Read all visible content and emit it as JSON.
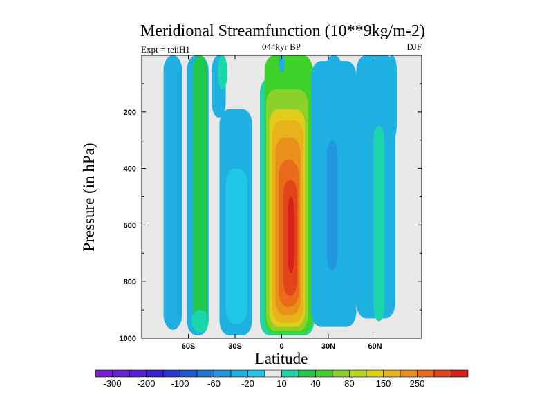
{
  "chart_data": {
    "type": "heatmap",
    "title": "Meridional Streamfunction (10**9kg/m-2)",
    "subtitle_left": "Expt = teiiH1",
    "subtitle_center": "044kyr BP",
    "subtitle_right": "DJF",
    "xlabel": "Latitude",
    "ylabel": "Pressure (in hPa)",
    "xlim": [
      -90,
      90
    ],
    "ylim": [
      1000,
      0
    ],
    "x_ticks": [
      {
        "value": -60,
        "label": "60S"
      },
      {
        "value": -30,
        "label": "30S"
      },
      {
        "value": 0,
        "label": "0"
      },
      {
        "value": 30,
        "label": "30N"
      },
      {
        "value": 60,
        "label": "60N"
      }
    ],
    "y_ticks": [
      {
        "value": 200,
        "label": "200"
      },
      {
        "value": 400,
        "label": "400"
      },
      {
        "value": 600,
        "label": "600"
      },
      {
        "value": 800,
        "label": "800"
      },
      {
        "value": 1000,
        "label": "1000"
      }
    ],
    "colorbar": {
      "colors": [
        "#7a1fd6",
        "#6a1fd8",
        "#5a1ddb",
        "#3b1ed6",
        "#2538d6",
        "#1f58d8",
        "#1e78dc",
        "#1f98e0",
        "#1fb0e2",
        "#1fc6e6",
        "#e8e8e8",
        "#1ad6a8",
        "#22c84a",
        "#3ed12a",
        "#8ad12a",
        "#b8d41e",
        "#e0cc1a",
        "#e8b21a",
        "#e8901a",
        "#e86a1a",
        "#e2441a",
        "#d8201a"
      ],
      "labels": [
        {
          "index": 1,
          "label": "-300"
        },
        {
          "index": 3,
          "label": "-200"
        },
        {
          "index": 5,
          "label": "-100"
        },
        {
          "index": 7,
          "label": "-60"
        },
        {
          "index": 9,
          "label": "-20"
        },
        {
          "index": 11,
          "label": "10"
        },
        {
          "index": 13,
          "label": "40"
        },
        {
          "index": 15,
          "label": "80"
        },
        {
          "index": 17,
          "label": "150"
        },
        {
          "index": 19,
          "label": "250"
        }
      ]
    },
    "background_color": "#e8e8e8",
    "regions": [
      {
        "color": "#1fb0e2",
        "x": [
          -76,
          -64
        ],
        "p": [
          0,
          970
        ]
      },
      {
        "color": "#1fb0e2",
        "x": [
          -61,
          -47
        ],
        "p": [
          0,
          990
        ]
      },
      {
        "color": "#22c84a",
        "x": [
          -57,
          -48
        ],
        "p": [
          0,
          950
        ]
      },
      {
        "color": "#1ad6a8",
        "x": [
          -58,
          -47
        ],
        "p": [
          900,
          980
        ]
      },
      {
        "color": "#1fb0e2",
        "x": [
          -45,
          -36
        ],
        "p": [
          0,
          220
        ]
      },
      {
        "color": "#1fb0e2",
        "x": [
          -40,
          -19
        ],
        "p": [
          190,
          990
        ]
      },
      {
        "color": "#1fc6e6",
        "x": [
          -36,
          -22
        ],
        "p": [
          400,
          950
        ]
      },
      {
        "color": "#1ad6a8",
        "x": [
          -14,
          21
        ],
        "p": [
          80,
          990
        ]
      },
      {
        "color": "#3ed12a",
        "x": [
          -11,
          20
        ],
        "p": [
          0,
          985
        ]
      },
      {
        "color": "#8ad12a",
        "x": [
          -10,
          17
        ],
        "p": [
          120,
          975
        ]
      },
      {
        "color": "#e0cc1a",
        "x": [
          -8,
          15
        ],
        "p": [
          190,
          960
        ]
      },
      {
        "color": "#e8b21a",
        "x": [
          -6,
          14
        ],
        "p": [
          230,
          945
        ]
      },
      {
        "color": "#e8901a",
        "x": [
          -4,
          12
        ],
        "p": [
          290,
          920
        ]
      },
      {
        "color": "#e86a1a",
        "x": [
          -2,
          11
        ],
        "p": [
          370,
          890
        ]
      },
      {
        "color": "#e2441a",
        "x": [
          1,
          10
        ],
        "p": [
          440,
          850
        ]
      },
      {
        "color": "#d8201a",
        "x": [
          4,
          8
        ],
        "p": [
          500,
          770
        ]
      },
      {
        "color": "#1fb0e2",
        "x": [
          19,
          48
        ],
        "p": [
          20,
          960
        ]
      },
      {
        "color": "#1f98e0",
        "x": [
          29,
          36
        ],
        "p": [
          300,
          760
        ]
      },
      {
        "color": "#1fb0e2",
        "x": [
          29,
          38
        ],
        "p": [
          0,
          60
        ]
      },
      {
        "color": "#1fb0e2",
        "x": [
          48,
          73
        ],
        "p": [
          0,
          930
        ]
      },
      {
        "color": "#1ad6a8",
        "x": [
          59,
          66
        ],
        "p": [
          250,
          940
        ]
      },
      {
        "color": "#1fb0e2",
        "x": [
          68,
          74
        ],
        "p": [
          0,
          300
        ]
      },
      {
        "color": "#1fb0e2",
        "x": [
          -2,
          2
        ],
        "p": [
          0,
          60
        ]
      },
      {
        "color": "#1ad6a8",
        "x": [
          -41,
          -35
        ],
        "p": [
          0,
          120
        ]
      }
    ]
  }
}
